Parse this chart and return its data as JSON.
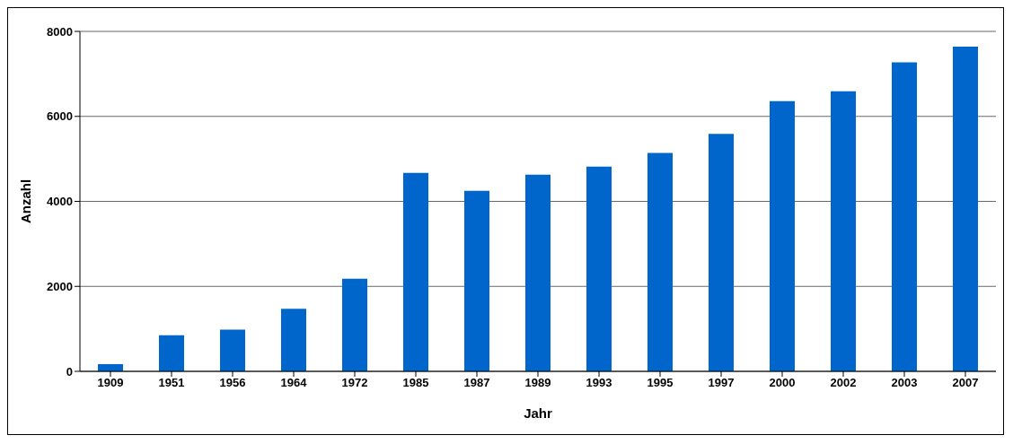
{
  "chart_data": {
    "type": "bar",
    "xlabel": "Jahr",
    "ylabel": "Anzahl",
    "categories": [
      "1909",
      "1951",
      "1956",
      "1964",
      "1972",
      "1985",
      "1987",
      "1989",
      "1993",
      "1995",
      "1997",
      "2000",
      "2002",
      "2003",
      "2007"
    ],
    "values": [
      170,
      850,
      980,
      1470,
      2180,
      4670,
      4250,
      4630,
      4820,
      5140,
      5590,
      6360,
      6590,
      7270,
      7640
    ],
    "color": "#0066cc",
    "ylim": [
      0,
      8000
    ],
    "yticks": [
      0,
      2000,
      4000,
      6000,
      8000
    ],
    "grid": "y"
  }
}
